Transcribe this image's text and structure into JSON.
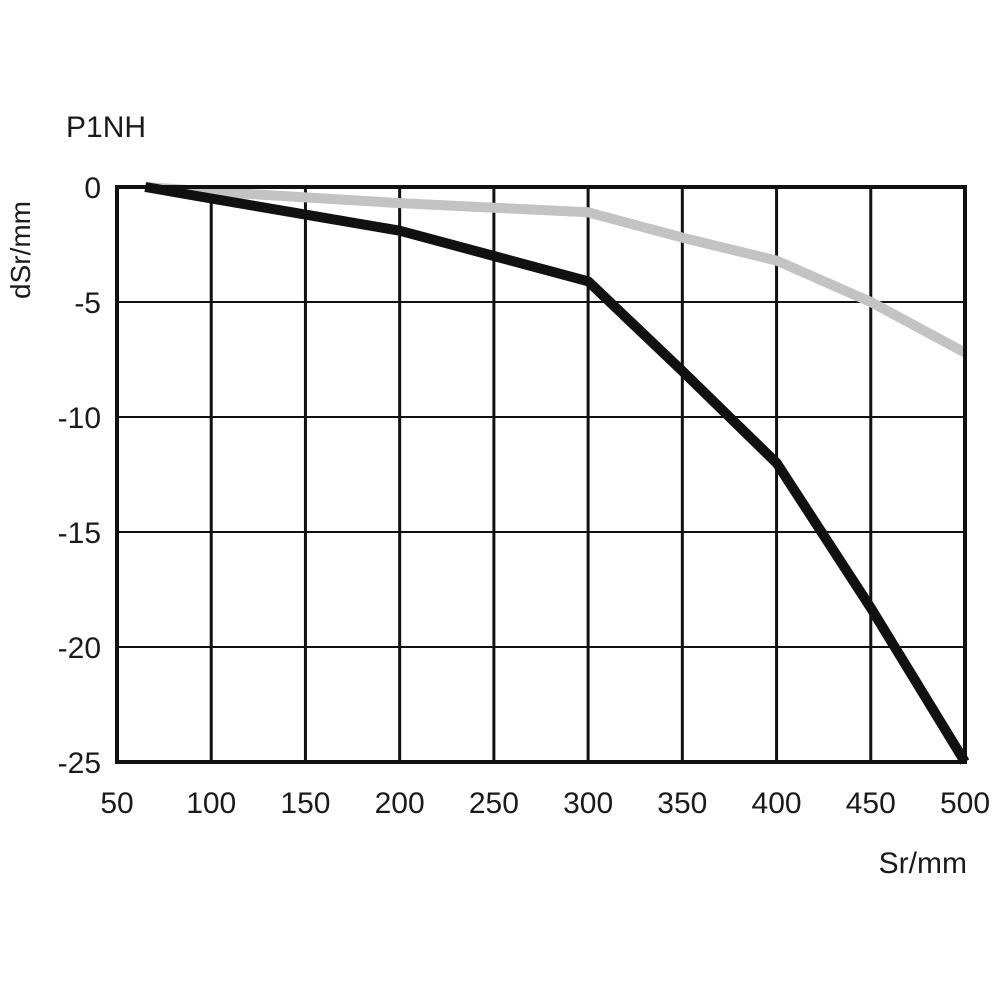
{
  "chart_data": {
    "type": "line",
    "title": "P1NH",
    "xlabel": "Sr/mm",
    "ylabel": "dSr/mm",
    "xlim": [
      50,
      500
    ],
    "ylim": [
      -25,
      0
    ],
    "x_ticks": [
      "50",
      "100",
      "150",
      "200",
      "250",
      "300",
      "350",
      "400",
      "450",
      "500"
    ],
    "y_ticks": [
      "0",
      "-5",
      "-10",
      "-15",
      "-20",
      "-25"
    ],
    "x_tick_values": [
      50,
      100,
      150,
      200,
      250,
      300,
      350,
      400,
      450,
      500
    ],
    "y_tick_values": [
      0,
      -5,
      -10,
      -15,
      -20,
      -25
    ],
    "grid": true,
    "series": [
      {
        "color": "#c3c3c3",
        "x": [
          65,
          100,
          150,
          200,
          250,
          300,
          350,
          400,
          450,
          500
        ],
        "y": [
          0,
          -0.2,
          -0.45,
          -0.7,
          -0.9,
          -1.1,
          -2.2,
          -3.2,
          -5.0,
          -7.2
        ]
      },
      {
        "color": "#111111",
        "x": [
          65,
          100,
          150,
          200,
          250,
          300,
          350,
          400,
          450,
          500
        ],
        "y": [
          0,
          -0.5,
          -1.2,
          -1.9,
          -3.0,
          -4.1,
          -8.0,
          -12.0,
          -18.3,
          -25.0
        ]
      }
    ]
  }
}
